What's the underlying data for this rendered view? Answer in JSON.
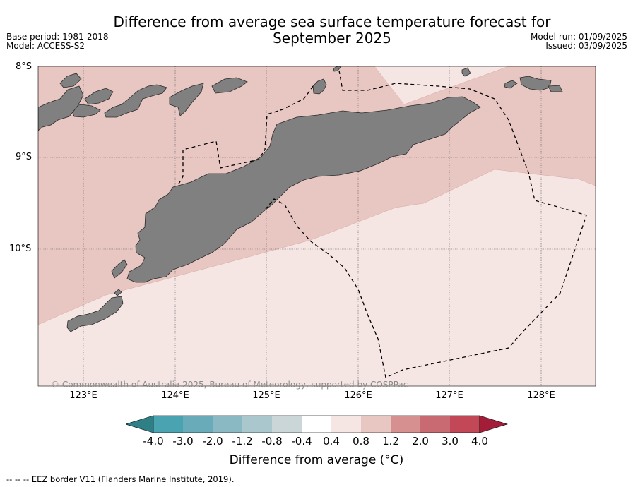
{
  "title": {
    "line1": "Difference from average sea surface temperature forecast for",
    "line2": "September 2025"
  },
  "meta": {
    "base_period": "Base period: 1981-2018",
    "model": "Model: ACCESS-S2",
    "model_run": "Model run: 01/09/2025",
    "issued": "Issued: 03/09/2025"
  },
  "map": {
    "lat_labels": [
      "8°S",
      "9°S",
      "10°S"
    ],
    "lat_values": [
      -8,
      -9,
      -10
    ],
    "lon_labels": [
      "123°E",
      "124°E",
      "125°E",
      "126°E",
      "127°E",
      "128°E"
    ],
    "lon_values": [
      123,
      124,
      125,
      126,
      127,
      128
    ],
    "extent": {
      "lon": [
        122.5,
        128.6
      ],
      "lat": [
        -8,
        -11.5
      ]
    },
    "copyright": "© Commonwealth of Australia 2025, Bureau of Meteorology, supported by COSPPac",
    "land_color": "#808080",
    "anomaly_colors": {
      "0.4 to 0.8": "#f5e6e4",
      "0.8 to 1.2": "#e8c6c1"
    },
    "eez_style": "dashed black line"
  },
  "colorbar": {
    "ticks": [
      "-4.0",
      "-3.0",
      "-2.0",
      "-1.2",
      "-0.8",
      "-0.4",
      "0.4",
      "0.8",
      "1.2",
      "2.0",
      "3.0",
      "4.0"
    ],
    "colors": [
      "#2e7f86",
      "#4aa3b0",
      "#6aabb9",
      "#8ab8c3",
      "#a9c7cc",
      "#cad6d8",
      "#ffffff",
      "#f5e6e4",
      "#e8c6c1",
      "#d6908f",
      "#c96a73",
      "#c24857",
      "#a31d39"
    ],
    "title": "Difference from average (°C)"
  },
  "footer": "--  --  -- EEZ border V11 (Flanders Marine Institute, 2019)."
}
